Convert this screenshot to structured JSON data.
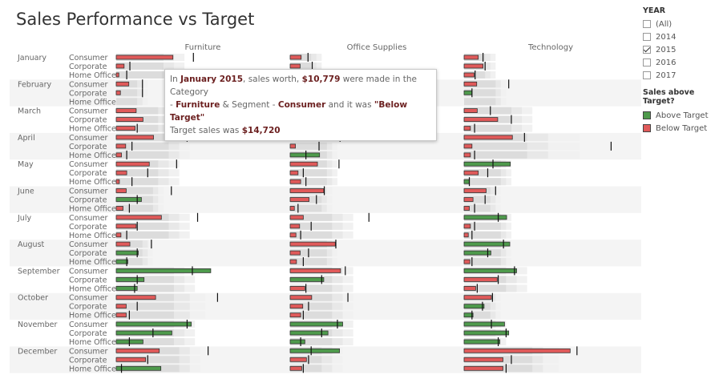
{
  "title": "Sales Performance vs Target",
  "legend": {
    "year_title": "YEAR",
    "years": [
      {
        "label": "(All)",
        "checked": false
      },
      {
        "label": "2014",
        "checked": false
      },
      {
        "label": "2015",
        "checked": true
      },
      {
        "label": "2016",
        "checked": false
      },
      {
        "label": "2017",
        "checked": false
      }
    ],
    "color_title": "Sales above Target?",
    "colors": [
      {
        "label": "Above Target",
        "color": "#4e9a4c"
      },
      {
        "label": "Below Target",
        "color": "#e05a5a"
      }
    ]
  },
  "tooltip": {
    "t1": "In ",
    "month": "January 2015",
    "t2": ", sales worth, ",
    "sales": "$10,779",
    "t3": " were made in the Category",
    "t4": "- ",
    "category": "Furniture",
    "t5": " & Segment - ",
    "segment": "Consumer",
    "t6": "  and it was ",
    "status": "\"Below Target\"",
    "t7": "Target sales was ",
    "target": "$14,720"
  },
  "chart_data": {
    "type": "bar",
    "categories": [
      "Furniture",
      "Office Supplies",
      "Technology"
    ],
    "months": [
      "January",
      "February",
      "March",
      "April",
      "May",
      "June",
      "July",
      "August",
      "September",
      "October",
      "November",
      "December"
    ],
    "segments": [
      "Consumer",
      "Corporate",
      "Home Office"
    ],
    "series": {
      "sales": [
        [
          [
            10.8,
            1.5,
            0.5
          ],
          [
            2.1,
            1.9,
            2.4
          ],
          [
            2.7,
            3.6,
            1.9
          ]
        ],
        [
          [
            2.4,
            0.8,
            0
          ],
          [
            1.1,
            0.5,
            0
          ],
          [
            2.4,
            1.5,
            0
          ]
        ],
        [
          [
            3.8,
            5.1,
            3.6
          ],
          [
            4.1,
            4.6,
            1.2
          ],
          [
            2.5,
            6.4,
            1.2
          ]
        ],
        [
          [
            7.1,
            1.8,
            1.0
          ],
          [
            5.5,
            1.0,
            5.6
          ],
          [
            9.2,
            1.5,
            1.2
          ]
        ],
        [
          [
            6.3,
            2.0,
            0.6
          ],
          [
            5.2,
            1.5,
            2.0
          ],
          [
            8.8,
            2.7,
            1.0
          ]
        ],
        [
          [
            1.9,
            4.8,
            1.3
          ],
          [
            6.4,
            3.6,
            0.8
          ],
          [
            4.2,
            1.7,
            1.0
          ]
        ],
        [
          [
            8.6,
            3.8,
            0.9
          ],
          [
            2.5,
            1.8,
            1.1
          ],
          [
            8.1,
            1.2,
            0.8
          ]
        ],
        [
          [
            2.6,
            4.2,
            2.2
          ],
          [
            8.6,
            1.9,
            1.2
          ],
          [
            8.7,
            5.1,
            1.1
          ]
        ],
        [
          [
            18.0,
            5.3,
            4.0
          ],
          [
            9.6,
            6.4,
            2.8
          ],
          [
            10.0,
            6.3,
            2.2
          ]
        ],
        [
          [
            7.5,
            1.9,
            1.9
          ],
          [
            4.1,
            2.4,
            2.0
          ],
          [
            5.2,
            3.8,
            1.7
          ]
        ],
        [
          [
            14.3,
            10.6,
            5.1
          ],
          [
            10.0,
            7.2,
            2.8
          ],
          [
            7.7,
            8.5,
            6.8
          ]
        ],
        [
          [
            8.2,
            5.6,
            8.5
          ],
          [
            9.4,
            3.1,
            2.2
          ],
          [
            20.2,
            7.4,
            7.4
          ]
        ]
      ],
      "target": [
        [
          [
            14.7,
            2.6,
            2.0
          ],
          [
            3.4,
            4.2,
            3.7
          ],
          [
            3.6,
            4.0,
            2.1
          ]
        ],
        [
          [
            5.0,
            5.0,
            0
          ],
          [
            2.0,
            2.5,
            0
          ],
          [
            8.5,
            1.5,
            0
          ]
        ],
        [
          [
            10.0,
            11.0,
            4.0
          ],
          [
            7.5,
            5.0,
            2.0
          ],
          [
            5.0,
            9.0,
            2.0
          ]
        ],
        [
          [
            13.5,
            3.0,
            2.0
          ],
          [
            9.5,
            5.5,
            3.0
          ],
          [
            11.5,
            28.0,
            2.0
          ]
        ],
        [
          [
            11.5,
            6.0,
            3.0
          ],
          [
            9.3,
            2.5,
            3.0
          ],
          [
            5.5,
            4.5,
            1.0
          ]
        ],
        [
          [
            10.5,
            4.0,
            2.5
          ],
          [
            6.5,
            5.0,
            1.5
          ],
          [
            6.0,
            4.0,
            2.0
          ]
        ],
        [
          [
            15.5,
            4.0,
            2.0
          ],
          [
            15.0,
            4.0,
            2.0
          ],
          [
            6.5,
            2.0,
            1.5
          ]
        ],
        [
          [
            6.7,
            4.0,
            2.0
          ],
          [
            8.7,
            3.5,
            2.5
          ],
          [
            7.5,
            4.5,
            1.5
          ]
        ],
        [
          [
            14.5,
            4.0,
            3.5
          ],
          [
            10.5,
            6.0,
            3.0
          ],
          [
            9.6,
            6.5,
            2.5
          ]
        ],
        [
          [
            19.3,
            4.0,
            2.5
          ],
          [
            11.0,
            3.5,
            2.5
          ],
          [
            5.4,
            3.5,
            1.5
          ]
        ],
        [
          [
            13.5,
            7.0,
            2.5
          ],
          [
            9.0,
            6.0,
            2.0
          ],
          [
            5.2,
            8.0,
            6.5
          ]
        ],
        [
          [
            17.5,
            6.0,
            1.0
          ],
          [
            4.0,
            3.5,
            2.5
          ],
          [
            21.5,
            9.0,
            8.0
          ]
        ]
      ],
      "reference": [
        [
          [
            9,
            11,
            13
          ],
          [
            4,
            5,
            6
          ],
          [
            4,
            5,
            6
          ]
        ],
        [
          [
            4,
            5,
            6
          ],
          [
            2,
            3,
            4
          ],
          [
            6,
            7,
            8
          ]
        ],
        [
          [
            8,
            10,
            12
          ],
          [
            6,
            7,
            8
          ],
          [
            9,
            11,
            13
          ]
        ],
        [
          [
            10,
            12,
            14
          ],
          [
            7,
            8,
            9
          ],
          [
            12,
            16,
            22
          ]
        ],
        [
          [
            8,
            10,
            12
          ],
          [
            7,
            8,
            9
          ],
          [
            7,
            8,
            9
          ]
        ],
        [
          [
            7,
            8,
            9
          ],
          [
            6,
            7,
            8
          ],
          [
            5,
            6,
            7
          ]
        ],
        [
          [
            10,
            12,
            14
          ],
          [
            8,
            10,
            12
          ],
          [
            7,
            8,
            9
          ]
        ],
        [
          [
            5,
            6,
            7
          ],
          [
            7,
            8,
            9
          ],
          [
            7,
            8,
            9
          ]
        ],
        [
          [
            11,
            13,
            15
          ],
          [
            8,
            10,
            12
          ],
          [
            8,
            10,
            12
          ]
        ],
        [
          [
            11,
            14,
            17
          ],
          [
            8,
            10,
            12
          ],
          [
            5,
            6,
            7
          ]
        ],
        [
          [
            11,
            13,
            15
          ],
          [
            8,
            10,
            12
          ],
          [
            6,
            7,
            8
          ]
        ],
        [
          [
            12,
            14,
            16
          ],
          [
            6,
            8,
            10
          ],
          [
            13,
            15,
            18
          ]
        ]
      ]
    },
    "colors": {
      "above": "#4e9a4c",
      "below": "#e05a5a"
    },
    "xlim": [
      0,
      30
    ],
    "grid": false
  }
}
